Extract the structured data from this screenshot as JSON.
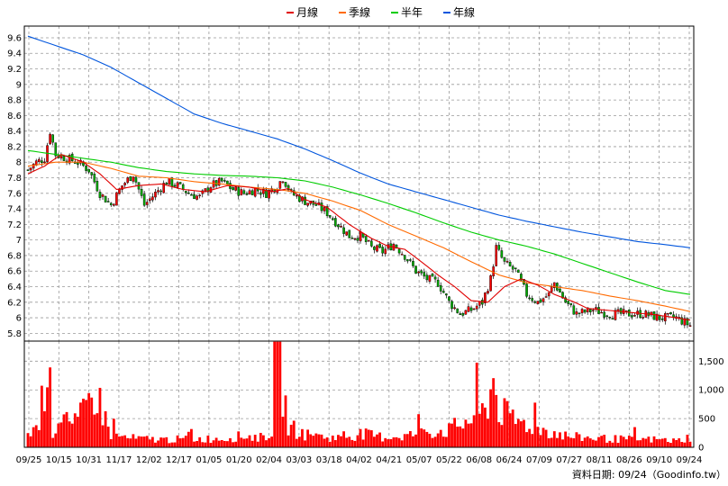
{
  "chart_data": {
    "type": "candlestick",
    "legend": {
      "placement": "top-center",
      "entries": [
        {
          "label": "月線",
          "color": "#e00000"
        },
        {
          "label": "季線",
          "color": "#ff6a00"
        },
        {
          "label": "半年",
          "color": "#00cc00"
        },
        {
          "label": "年線",
          "color": "#0055dd"
        }
      ]
    },
    "price_axis": {
      "ylim": [
        5.7,
        9.75
      ],
      "ticks": [
        "9.6",
        "9.4",
        "9.2",
        "9",
        "8.8",
        "8.6",
        "8.4",
        "8.2",
        "8",
        "7.8",
        "7.6",
        "7.4",
        "7.2",
        "7",
        "6.8",
        "6.6",
        "6.4",
        "6.2",
        "6",
        "5.8"
      ],
      "side": "left"
    },
    "volume_axis": {
      "ylim": [
        0,
        1850
      ],
      "ticks": [
        "1,500",
        "1,000",
        "500",
        "0"
      ],
      "side": "right"
    },
    "x_ticks": [
      "09/25",
      "10/15",
      "10/31",
      "11/17",
      "12/02",
      "12/17",
      "01/05",
      "01/20",
      "02/04",
      "03/03",
      "03/18",
      "04/02",
      "04/21",
      "05/07",
      "05/22",
      "06/08",
      "06/24",
      "07/09",
      "07/27",
      "08/11",
      "08/26",
      "09/10",
      "09/24"
    ],
    "grid": true,
    "colors": {
      "up": "#ff0000",
      "down": "#00aa00",
      "volume": "#ff0000",
      "grid": "#999999"
    },
    "price_anchors": [
      [
        0,
        7.9
      ],
      [
        3,
        8.0
      ],
      [
        6,
        8.05
      ],
      [
        8,
        8.4
      ],
      [
        10,
        8.1
      ],
      [
        14,
        8.05
      ],
      [
        18,
        8.0
      ],
      [
        22,
        7.9
      ],
      [
        26,
        7.6
      ],
      [
        30,
        7.45
      ],
      [
        34,
        7.7
      ],
      [
        38,
        7.85
      ],
      [
        42,
        7.45
      ],
      [
        46,
        7.6
      ],
      [
        50,
        7.75
      ],
      [
        54,
        7.7
      ],
      [
        58,
        7.6
      ],
      [
        62,
        7.55
      ],
      [
        66,
        7.7
      ],
      [
        70,
        7.75
      ],
      [
        74,
        7.65
      ],
      [
        78,
        7.6
      ],
      [
        82,
        7.65
      ],
      [
        86,
        7.6
      ],
      [
        90,
        7.7
      ],
      [
        92,
        7.8
      ],
      [
        95,
        7.6
      ],
      [
        100,
        7.5
      ],
      [
        104,
        7.45
      ],
      [
        108,
        7.35
      ],
      [
        112,
        7.2
      ],
      [
        116,
        7.05
      ],
      [
        120,
        7.05
      ],
      [
        124,
        6.9
      ],
      [
        128,
        6.85
      ],
      [
        132,
        6.95
      ],
      [
        136,
        6.8
      ],
      [
        140,
        6.6
      ],
      [
        144,
        6.5
      ],
      [
        148,
        6.45
      ],
      [
        152,
        6.2
      ],
      [
        156,
        6.05
      ],
      [
        160,
        6.1
      ],
      [
        164,
        6.2
      ],
      [
        167,
        6.5
      ],
      [
        169,
        6.9
      ],
      [
        172,
        6.7
      ],
      [
        176,
        6.6
      ],
      [
        180,
        6.3
      ],
      [
        184,
        6.2
      ],
      [
        188,
        6.3
      ],
      [
        190,
        6.45
      ],
      [
        194,
        6.2
      ],
      [
        198,
        6.05
      ],
      [
        204,
        6.1
      ],
      [
        210,
        6.05
      ],
      [
        216,
        6.05
      ],
      [
        222,
        6.05
      ],
      [
        228,
        6.0
      ],
      [
        234,
        6.0
      ],
      [
        239,
        5.9
      ]
    ],
    "volume_anchors": [
      [
        0,
        280
      ],
      [
        4,
        430
      ],
      [
        7,
        1800
      ],
      [
        9,
        300
      ],
      [
        12,
        700
      ],
      [
        16,
        380
      ],
      [
        20,
        650
      ],
      [
        24,
        1100
      ],
      [
        27,
        700
      ],
      [
        30,
        250
      ],
      [
        36,
        180
      ],
      [
        42,
        160
      ],
      [
        50,
        150
      ],
      [
        60,
        160
      ],
      [
        70,
        170
      ],
      [
        78,
        220
      ],
      [
        84,
        190
      ],
      [
        88,
        300
      ],
      [
        90,
        1850
      ],
      [
        94,
        400
      ],
      [
        100,
        250
      ],
      [
        106,
        200
      ],
      [
        112,
        180
      ],
      [
        120,
        260
      ],
      [
        128,
        200
      ],
      [
        136,
        220
      ],
      [
        144,
        300
      ],
      [
        152,
        330
      ],
      [
        160,
        550
      ],
      [
        165,
        700
      ],
      [
        168,
        1300
      ],
      [
        170,
        750
      ],
      [
        174,
        550
      ],
      [
        178,
        480
      ],
      [
        184,
        380
      ],
      [
        190,
        280
      ],
      [
        196,
        200
      ],
      [
        204,
        180
      ],
      [
        212,
        160
      ],
      [
        220,
        150
      ],
      [
        228,
        150
      ],
      [
        234,
        120
      ],
      [
        239,
        200
      ]
    ],
    "ma_year": [
      [
        0,
        9.62
      ],
      [
        10,
        9.5
      ],
      [
        20,
        9.38
      ],
      [
        30,
        9.22
      ],
      [
        40,
        9.02
      ],
      [
        50,
        8.82
      ],
      [
        60,
        8.62
      ],
      [
        70,
        8.5
      ],
      [
        80,
        8.4
      ],
      [
        90,
        8.3
      ],
      [
        100,
        8.17
      ],
      [
        110,
        8.02
      ],
      [
        120,
        7.86
      ],
      [
        130,
        7.72
      ],
      [
        140,
        7.62
      ],
      [
        150,
        7.52
      ],
      [
        160,
        7.42
      ],
      [
        170,
        7.32
      ],
      [
        180,
        7.24
      ],
      [
        190,
        7.17
      ],
      [
        200,
        7.1
      ],
      [
        210,
        7.04
      ],
      [
        220,
        6.98
      ],
      [
        230,
        6.94
      ],
      [
        239,
        6.9
      ]
    ],
    "ma_half": [
      [
        0,
        8.15
      ],
      [
        10,
        8.1
      ],
      [
        20,
        8.05
      ],
      [
        30,
        8.0
      ],
      [
        40,
        7.93
      ],
      [
        50,
        7.88
      ],
      [
        60,
        7.85
      ],
      [
        70,
        7.83
      ],
      [
        80,
        7.82
      ],
      [
        90,
        7.8
      ],
      [
        100,
        7.76
      ],
      [
        110,
        7.68
      ],
      [
        120,
        7.58
      ],
      [
        130,
        7.47
      ],
      [
        140,
        7.35
      ],
      [
        150,
        7.22
      ],
      [
        160,
        7.1
      ],
      [
        170,
        7.0
      ],
      [
        180,
        6.92
      ],
      [
        190,
        6.82
      ],
      [
        200,
        6.7
      ],
      [
        210,
        6.58
      ],
      [
        220,
        6.46
      ],
      [
        230,
        6.35
      ],
      [
        239,
        6.3
      ]
    ],
    "ma_season": [
      [
        0,
        7.95
      ],
      [
        10,
        8.0
      ],
      [
        20,
        8.0
      ],
      [
        30,
        7.92
      ],
      [
        40,
        7.82
      ],
      [
        50,
        7.8
      ],
      [
        60,
        7.75
      ],
      [
        70,
        7.72
      ],
      [
        80,
        7.68
      ],
      [
        90,
        7.65
      ],
      [
        100,
        7.6
      ],
      [
        110,
        7.5
      ],
      [
        120,
        7.38
      ],
      [
        130,
        7.2
      ],
      [
        140,
        7.05
      ],
      [
        150,
        6.9
      ],
      [
        160,
        6.72
      ],
      [
        170,
        6.55
      ],
      [
        180,
        6.45
      ],
      [
        190,
        6.4
      ],
      [
        200,
        6.35
      ],
      [
        210,
        6.28
      ],
      [
        220,
        6.22
      ],
      [
        230,
        6.15
      ],
      [
        239,
        6.08
      ]
    ],
    "ma_month": [
      [
        0,
        7.85
      ],
      [
        6,
        7.95
      ],
      [
        12,
        8.1
      ],
      [
        20,
        8.0
      ],
      [
        26,
        7.85
      ],
      [
        32,
        7.65
      ],
      [
        40,
        7.7
      ],
      [
        48,
        7.72
      ],
      [
        56,
        7.65
      ],
      [
        64,
        7.62
      ],
      [
        72,
        7.7
      ],
      [
        80,
        7.68
      ],
      [
        88,
        7.62
      ],
      [
        94,
        7.66
      ],
      [
        100,
        7.52
      ],
      [
        108,
        7.42
      ],
      [
        116,
        7.2
      ],
      [
        124,
        7.02
      ],
      [
        130,
        6.92
      ],
      [
        136,
        6.88
      ],
      [
        142,
        6.72
      ],
      [
        148,
        6.55
      ],
      [
        154,
        6.4
      ],
      [
        160,
        6.22
      ],
      [
        166,
        6.2
      ],
      [
        172,
        6.4
      ],
      [
        178,
        6.5
      ],
      [
        184,
        6.42
      ],
      [
        190,
        6.3
      ],
      [
        196,
        6.22
      ],
      [
        202,
        6.12
      ],
      [
        208,
        6.1
      ],
      [
        214,
        6.08
      ],
      [
        220,
        6.06
      ],
      [
        226,
        6.04
      ],
      [
        232,
        6.01
      ],
      [
        239,
        5.97
      ]
    ]
  },
  "credit": "資料日期: 09/24（Goodinfo.tw）"
}
